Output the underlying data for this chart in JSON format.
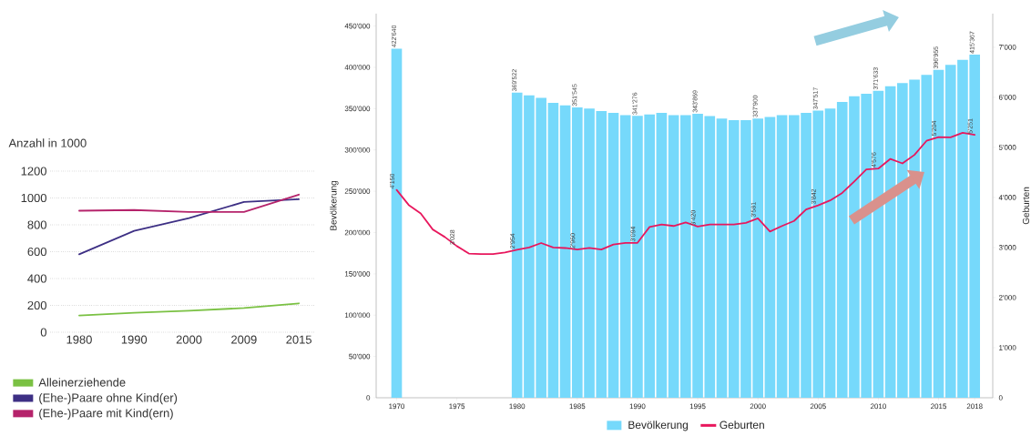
{
  "chart_data": [
    {
      "type": "line",
      "title": "Anzahl in 1000",
      "categories": [
        "1980",
        "1990",
        "2000",
        "2009",
        "2015"
      ],
      "series": [
        {
          "name": "Alleinerziehende",
          "color": "#7ac143",
          "values": [
            125,
            145,
            160,
            180,
            215
          ]
        },
        {
          "name": "(Ehe-)Paare ohne Kind(er)",
          "color": "#3d2f84",
          "values": [
            580,
            755,
            850,
            970,
            990
          ]
        },
        {
          "name": "(Ehe-)Paare mit Kind(ern)",
          "color": "#b5236b",
          "values": [
            905,
            910,
            895,
            895,
            1025
          ]
        }
      ],
      "ylim": [
        0,
        1200
      ],
      "yticks": [
        0,
        200,
        400,
        600,
        800,
        1000,
        1200
      ],
      "grid": "y",
      "legend": "bottom left"
    },
    {
      "type": "bar",
      "ylabel": "Bevölkerung",
      "y2label": "Geburten",
      "series": [
        {
          "name": "Bevölkerung",
          "type": "bar",
          "color": "#76d9fb",
          "x": [
            1970,
            1980,
            1981,
            1982,
            1983,
            1984,
            1985,
            1986,
            1987,
            1988,
            1989,
            1990,
            1991,
            1992,
            1993,
            1994,
            1995,
            1996,
            1997,
            1998,
            1999,
            2000,
            2001,
            2002,
            2003,
            2004,
            2005,
            2006,
            2007,
            2008,
            2009,
            2010,
            2011,
            2012,
            2013,
            2014,
            2015,
            2016,
            2017,
            2018
          ],
          "values": [
            422640,
            369522,
            366000,
            363000,
            357000,
            354000,
            351545,
            350000,
            347000,
            345000,
            342000,
            341276,
            343000,
            345000,
            342000,
            342000,
            343869,
            341000,
            338000,
            336000,
            336000,
            337900,
            340000,
            342000,
            342000,
            345000,
            347517,
            350000,
            358000,
            365000,
            368000,
            371633,
            377000,
            381000,
            385000,
            391000,
            396955,
            403000,
            409000,
            415367
          ],
          "value_labels": [
            "422'640",
            "369'522",
            null,
            null,
            null,
            null,
            "351'545",
            null,
            null,
            null,
            null,
            "341'276",
            null,
            null,
            null,
            null,
            "343'869",
            null,
            null,
            null,
            null,
            "337'900",
            null,
            null,
            null,
            null,
            "347'517",
            null,
            null,
            null,
            null,
            "371'633",
            null,
            null,
            null,
            null,
            "396'955",
            null,
            null,
            "415'367"
          ]
        },
        {
          "name": "Geburten",
          "type": "line",
          "axis": "y2",
          "color": "#e8175d",
          "x": [
            1970,
            1971,
            1972,
            1973,
            1974,
            1975,
            1976,
            1977,
            1978,
            1979,
            1980,
            1981,
            1982,
            1983,
            1984,
            1985,
            1986,
            1987,
            1988,
            1989,
            1990,
            1991,
            1992,
            1993,
            1994,
            1995,
            1996,
            1997,
            1998,
            1999,
            2000,
            2001,
            2002,
            2003,
            2004,
            2005,
            2006,
            2007,
            2008,
            2009,
            2010,
            2011,
            2012,
            2013,
            2014,
            2015,
            2016,
            2017,
            2018
          ],
          "values": [
            4150,
            3850,
            3680,
            3360,
            3210,
            3028,
            2880,
            2870,
            2870,
            2900,
            2954,
            3000,
            3090,
            3000,
            2990,
            2960,
            2990,
            2960,
            3060,
            3090,
            3094,
            3410,
            3460,
            3430,
            3500,
            3420,
            3460,
            3460,
            3460,
            3490,
            3581,
            3320,
            3430,
            3530,
            3760,
            3842,
            3940,
            4090,
            4320,
            4560,
            4576,
            4770,
            4680,
            4850,
            5130,
            5204,
            5200,
            5290,
            5251
          ],
          "value_labels": [
            "4'150",
            null,
            null,
            null,
            null,
            "3'028",
            null,
            null,
            null,
            null,
            "2'954",
            null,
            null,
            null,
            null,
            "2'960",
            null,
            null,
            null,
            null,
            "3'094",
            null,
            null,
            null,
            null,
            "3'420",
            null,
            null,
            null,
            null,
            "3'581",
            null,
            null,
            null,
            null,
            "3'842",
            null,
            null,
            null,
            null,
            "4'576",
            null,
            null,
            null,
            null,
            "5'204",
            null,
            null,
            "5'251"
          ]
        }
      ],
      "xlim": [
        1968.3,
        2019.5
      ],
      "xticks": [
        1970,
        1975,
        1980,
        1985,
        1990,
        1995,
        2000,
        2005,
        2010,
        2015,
        2018
      ],
      "ylim": [
        0,
        465000
      ],
      "yticks": [
        0,
        {
          "value": 50000,
          "label": "50'000"
        },
        {
          "value": 100000,
          "label": "100'000"
        },
        {
          "value": 150000,
          "label": "150'000"
        },
        {
          "value": 200000,
          "label": "200'000"
        },
        {
          "value": 250000,
          "label": "250'000"
        },
        {
          "value": 300000,
          "label": "300'000"
        },
        {
          "value": 350000,
          "label": "350'000"
        },
        {
          "value": 400000,
          "label": "400'000"
        },
        {
          "value": 450000,
          "label": "450'000"
        }
      ],
      "y2lim": [
        0,
        7670
      ],
      "y2ticks": [
        0,
        {
          "value": 1000,
          "label": "1'000"
        },
        {
          "value": 2000,
          "label": "2'000"
        },
        {
          "value": 3000,
          "label": "3'000"
        },
        {
          "value": 4000,
          "label": "4'000"
        },
        {
          "value": 5000,
          "label": "5'000"
        },
        {
          "value": 6000,
          "label": "6'000"
        },
        {
          "value": 7000,
          "label": "7'000"
        }
      ],
      "legend": "bottom"
    }
  ]
}
